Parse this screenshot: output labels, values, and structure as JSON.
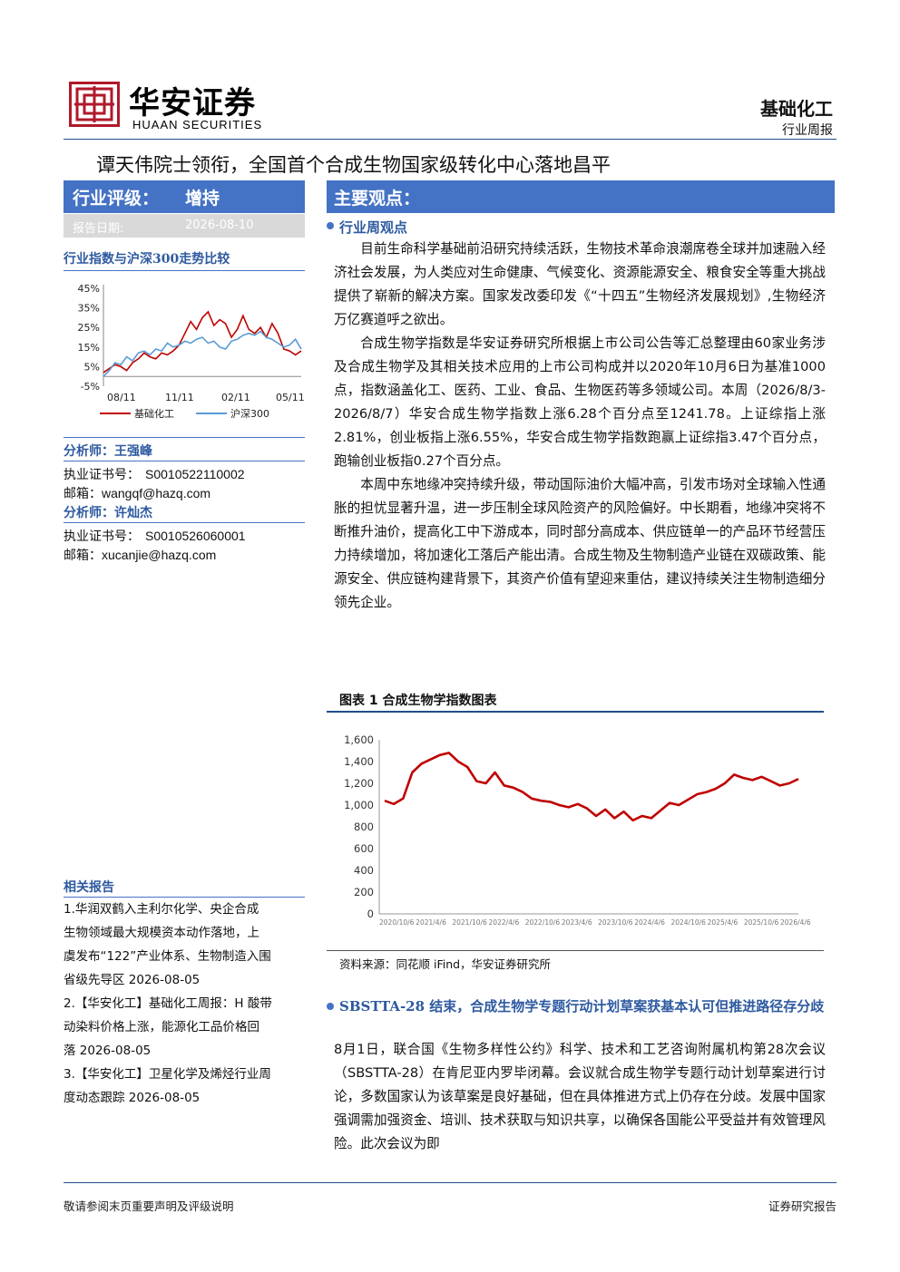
{
  "header": {
    "logo_cn": "华安证券",
    "logo_en": "HUAAN SECURITIES",
    "sector": "基础化工",
    "report_type": "行业周报"
  },
  "title": "谭天伟院士领衔，全国首个合成生物国家级转化中心落地昌平",
  "rating": {
    "label": "行业评级：",
    "value": "增持"
  },
  "report_date": {
    "label": "报告日期:",
    "value": "2026-08-10"
  },
  "index_chart": {
    "title": "行业指数与沪深300走势比较",
    "legend": [
      "基础化工",
      "沪深300"
    ],
    "colors": [
      "#c00000",
      "#5b9bd5"
    ],
    "chart_data": {
      "type": "line",
      "y_ticks": [
        "45%",
        "35%",
        "25%",
        "15%",
        "5%",
        "-5%"
      ],
      "x_ticks": [
        "08/11",
        "11/11",
        "02/11",
        "05/11"
      ],
      "ylim": [
        -5,
        45
      ],
      "series": [
        {
          "name": "基础化工",
          "values": [
            2,
            4,
            6,
            5,
            3,
            7,
            9,
            12,
            10,
            9,
            12,
            11,
            13,
            16,
            22,
            28,
            24,
            30,
            33,
            26,
            29,
            27,
            20,
            24,
            31,
            24,
            22,
            25,
            20,
            27,
            22,
            14,
            13,
            11,
            13
          ]
        },
        {
          "name": "沪深300",
          "values": [
            0,
            3,
            7,
            6,
            10,
            8,
            12,
            13,
            11,
            14,
            13,
            17,
            15,
            16,
            18,
            17,
            19,
            20,
            17,
            18,
            15,
            14,
            18,
            19,
            21,
            22,
            21,
            23,
            20,
            19,
            17,
            15,
            16,
            19,
            14
          ]
        }
      ]
    }
  },
  "analysts": [
    {
      "label": "分析师：王强峰",
      "cert_label": "执业证书号：",
      "cert": "S0010522110002",
      "mail_label": "邮箱：",
      "mail": "wangqf@hazq.com"
    },
    {
      "label": "分析师：许灿杰",
      "cert_label": "执业证书号：",
      "cert": "S0010526060001",
      "mail_label": "邮箱：",
      "mail": "xucanjie@hazq.com"
    }
  ],
  "related": {
    "title": "相关报告",
    "lines": [
      "1.华润双鹤入主利尔化学、央企合成",
      "生物领域最大规模资本动作落地，上",
      "虞发布“122”产业体系、生物制造入围",
      "省级先导区 2026-08-05",
      "2.【华安化工】基础化工周报：H 酸带",
      "动染料价格上涨，能源化工品价格回",
      "落 2026-08-05",
      "3.【华安化工】卫星化学及烯烃行业周",
      "度动态跟踪 2026-08-05"
    ]
  },
  "main": {
    "heading": "主要观点：",
    "section1_title": "行业周观点",
    "paragraphs": [
      "目前生命科学基础前沿研究持续活跃，生物技术革命浪潮席卷全球并加速融入经济社会发展，为人类应对生命健康、气候变化、资源能源安全、粮食安全等重大挑战提供了崭新的解决方案。国家发改委印发《“十四五”生物经济发展规划》,生物经济万亿赛道呼之欲出。",
      "合成生物学指数是华安证券研究所根据上市公司公告等汇总整理由60家业务涉及合成生物学及其相关技术应用的上市公司构成并以2020年10月6日为基准1000点，指数涵盖化工、医药、工业、食品、生物医药等多领域公司。本周（2026/8/3-2026/8/7）华安合成生物学指数上涨6.28个百分点至1241.78。上证综指上涨2.81%，创业板指上涨6.55%，华安合成生物学指数跑赢上证综指3.47个百分点，跑输创业板指0.27个百分点。",
      "本周中东地缘冲突持续升级，带动国际油价大幅冲高，引发市场对全球输入性通胀的担忧显著升温，进一步压制全球风险资产的风险偏好。中长期看，地缘冲突将不断推升油价，提高化工中下游成本，同时部分高成本、供应链单一的产品环节经营压力持续增加，将加速化工落后产能出清。合成生物及生物制造产业链在双碳政策、能源安全、供应链构建背景下，其资产价值有望迎来重估，建议持续关注生物制造细分领先企业。"
    ],
    "figure_title": "图表 1 合成生物学指数图表",
    "figure_source": "资料来源：同花顺 iFind，华安证券研究所",
    "section2_title": "SBSTTA-28 结束，合成生物学专题行动计划草案获基本认可但推进路径存分歧",
    "section2_text": "8月1日，联合国《生物多样性公约》科学、技术和工艺咨询附属机构第28次会议（SBSTTA-28）在肯尼亚内罗毕闭幕。会议就合成生物学专题行动计划草案进行讨论，多数国家认为该草案是良好基础，但在具体推进方式上仍存在分歧。发展中国家强调需加强资金、培训、技术获取与知识共享，以确保各国能公平受益并有效管理风险。此次会议为即"
  },
  "synbio_chart": {
    "color": "#c00000",
    "chart_data": {
      "type": "line",
      "y_ticks": [
        "1,600",
        "1,400",
        "1,200",
        "1,000",
        "800",
        "600",
        "400",
        "200",
        "0"
      ],
      "ylim": [
        0,
        1600
      ],
      "x_ticks": [
        "2020/10/6",
        "2021/4/6",
        "2021/10/6",
        "2022/4/6",
        "2022/10/6",
        "2023/4/6",
        "2023/10/6",
        "2024/4/6",
        "2024/10/6",
        "2025/4/6",
        "2025/10/6",
        "2026/4/6"
      ],
      "series": [
        {
          "name": "",
          "values": [
            1040,
            1010,
            1060,
            1300,
            1380,
            1420,
            1460,
            1480,
            1400,
            1350,
            1220,
            1200,
            1300,
            1180,
            1160,
            1120,
            1060,
            1040,
            1030,
            1000,
            980,
            1010,
            970,
            900,
            960,
            880,
            940,
            860,
            900,
            880,
            950,
            1020,
            1000,
            1050,
            1100,
            1120,
            1150,
            1200,
            1280,
            1250,
            1230,
            1260,
            1220,
            1180,
            1200,
            1240
          ]
        }
      ]
    }
  },
  "footer": {
    "left": "敬请参阅末页重要声明及评级说明",
    "right": "证券研究报告"
  }
}
